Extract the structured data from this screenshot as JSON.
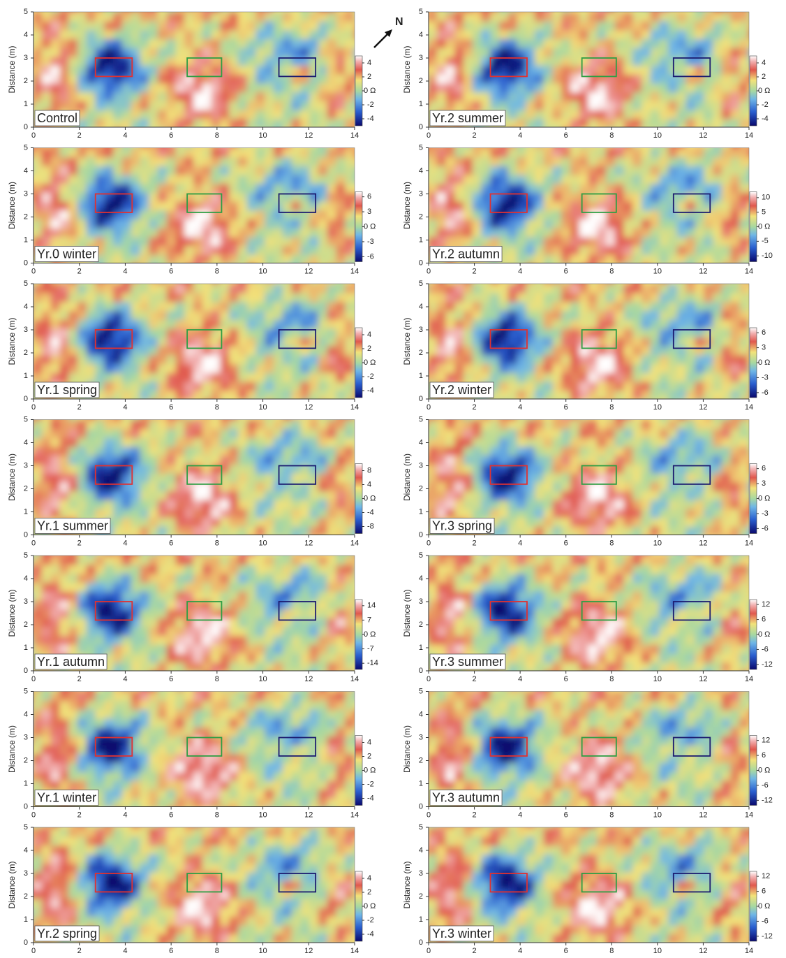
{
  "annotation": "N",
  "chart_data": [
    {
      "type": "heatmap",
      "label": "Control",
      "ylabel": "Distance (m)",
      "xlim": [
        0,
        14
      ],
      "xticks": [
        0,
        2,
        4,
        6,
        8,
        10,
        12,
        14
      ],
      "ylim": [
        0,
        5
      ],
      "yticks": [
        0,
        1,
        2,
        3,
        4,
        5
      ],
      "clim": [
        -5,
        5
      ],
      "cticks": [
        4,
        2,
        {
          "value": 0,
          "label": "0 Ω"
        },
        -2,
        -4
      ],
      "boxes": [
        {
          "color": "#e03131",
          "x": [
            2.7,
            4.3
          ],
          "y": [
            2.2,
            3
          ]
        },
        {
          "color": "#2f9e44",
          "x": [
            6.7,
            8.2
          ],
          "y": [
            2.2,
            3
          ]
        },
        {
          "color": "#1c1c70",
          "x": [
            10.7,
            12.3
          ],
          "y": [
            2.2,
            3
          ]
        }
      ]
    },
    {
      "type": "heatmap",
      "label": "Yr.0 winter",
      "ylabel": "Distance (m)",
      "xlim": [
        0,
        14
      ],
      "xticks": [
        0,
        2,
        4,
        6,
        8,
        10,
        12,
        14
      ],
      "ylim": [
        0,
        5
      ],
      "yticks": [
        0,
        1,
        2,
        3,
        4,
        5
      ],
      "clim": [
        -7,
        7
      ],
      "cticks": [
        6,
        3,
        {
          "value": 0,
          "label": "0 Ω"
        },
        -3,
        -6
      ],
      "boxes": [
        {
          "color": "#e03131",
          "x": [
            2.7,
            4.3
          ],
          "y": [
            2.2,
            3
          ]
        },
        {
          "color": "#2f9e44",
          "x": [
            6.7,
            8.2
          ],
          "y": [
            2.2,
            3
          ]
        },
        {
          "color": "#1c1c70",
          "x": [
            10.7,
            12.3
          ],
          "y": [
            2.2,
            3
          ]
        }
      ]
    },
    {
      "type": "heatmap",
      "label": "Yr.1 spring",
      "ylabel": "Distance (m)",
      "xlim": [
        0,
        14
      ],
      "xticks": [
        0,
        2,
        4,
        6,
        8,
        10,
        12,
        14
      ],
      "ylim": [
        0,
        5
      ],
      "yticks": [
        0,
        1,
        2,
        3,
        4,
        5
      ],
      "clim": [
        -5,
        5
      ],
      "cticks": [
        4,
        2,
        {
          "value": 0,
          "label": "0 Ω"
        },
        -2,
        -4
      ],
      "boxes": [
        {
          "color": "#e03131",
          "x": [
            2.7,
            4.3
          ],
          "y": [
            2.2,
            3
          ]
        },
        {
          "color": "#2f9e44",
          "x": [
            6.7,
            8.2
          ],
          "y": [
            2.2,
            3
          ]
        },
        {
          "color": "#1c1c70",
          "x": [
            10.7,
            12.3
          ],
          "y": [
            2.2,
            3
          ]
        }
      ]
    },
    {
      "type": "heatmap",
      "label": "Yr.1 summer",
      "ylabel": "Distance (m)",
      "xlim": [
        0,
        14
      ],
      "xticks": [
        0,
        2,
        4,
        6,
        8,
        10,
        12,
        14
      ],
      "ylim": [
        0,
        5
      ],
      "yticks": [
        0,
        1,
        2,
        3,
        4,
        5
      ],
      "clim": [
        -10,
        10
      ],
      "cticks": [
        8,
        4,
        {
          "value": 0,
          "label": "0 Ω"
        },
        -4,
        -8
      ],
      "boxes": [
        {
          "color": "#e03131",
          "x": [
            2.7,
            4.3
          ],
          "y": [
            2.2,
            3
          ]
        },
        {
          "color": "#2f9e44",
          "x": [
            6.7,
            8.2
          ],
          "y": [
            2.2,
            3
          ]
        },
        {
          "color": "#1c1c70",
          "x": [
            10.7,
            12.3
          ],
          "y": [
            2.2,
            3
          ]
        }
      ]
    },
    {
      "type": "heatmap",
      "label": "Yr.1 autumn",
      "ylabel": "Distance (m)",
      "xlim": [
        0,
        14
      ],
      "xticks": [
        0,
        2,
        4,
        6,
        8,
        10,
        12,
        14
      ],
      "ylim": [
        0,
        5
      ],
      "yticks": [
        0,
        1,
        2,
        3,
        4,
        5
      ],
      "clim": [
        -17,
        17
      ],
      "cticks": [
        14,
        7,
        {
          "value": 0,
          "label": "0 Ω"
        },
        -7,
        -14
      ],
      "boxes": [
        {
          "color": "#e03131",
          "x": [
            2.7,
            4.3
          ],
          "y": [
            2.2,
            3
          ]
        },
        {
          "color": "#2f9e44",
          "x": [
            6.7,
            8.2
          ],
          "y": [
            2.2,
            3
          ]
        },
        {
          "color": "#1c1c70",
          "x": [
            10.7,
            12.3
          ],
          "y": [
            2.2,
            3
          ]
        }
      ]
    },
    {
      "type": "heatmap",
      "label": "Yr.1 winter",
      "ylabel": "Distance (m)",
      "xlim": [
        0,
        14
      ],
      "xticks": [
        0,
        2,
        4,
        6,
        8,
        10,
        12,
        14
      ],
      "ylim": [
        0,
        5
      ],
      "yticks": [
        0,
        1,
        2,
        3,
        4,
        5
      ],
      "clim": [
        -5,
        5
      ],
      "cticks": [
        4,
        2,
        {
          "value": 0,
          "label": "0 Ω"
        },
        -2,
        -4
      ],
      "boxes": [
        {
          "color": "#e03131",
          "x": [
            2.7,
            4.3
          ],
          "y": [
            2.2,
            3
          ]
        },
        {
          "color": "#2f9e44",
          "x": [
            6.7,
            8.2
          ],
          "y": [
            2.2,
            3
          ]
        },
        {
          "color": "#1c1c70",
          "x": [
            10.7,
            12.3
          ],
          "y": [
            2.2,
            3
          ]
        }
      ]
    },
    {
      "type": "heatmap",
      "label": "Yr.2 spring",
      "ylabel": "Distance (m)",
      "xlim": [
        0,
        14
      ],
      "xticks": [
        0,
        2,
        4,
        6,
        8,
        10,
        12,
        14
      ],
      "ylim": [
        0,
        5
      ],
      "yticks": [
        0,
        1,
        2,
        3,
        4,
        5
      ],
      "clim": [
        -5,
        5
      ],
      "cticks": [
        4,
        2,
        {
          "value": 0,
          "label": "0 Ω"
        },
        -2,
        -4
      ],
      "boxes": [
        {
          "color": "#e03131",
          "x": [
            2.7,
            4.3
          ],
          "y": [
            2.2,
            3
          ]
        },
        {
          "color": "#2f9e44",
          "x": [
            6.7,
            8.2
          ],
          "y": [
            2.2,
            3
          ]
        },
        {
          "color": "#1c1c70",
          "x": [
            10.7,
            12.3
          ],
          "y": [
            2.2,
            3
          ]
        }
      ]
    },
    {
      "type": "heatmap",
      "label": "Yr.2 summer",
      "ylabel": "Distance (m)",
      "xlim": [
        0,
        14
      ],
      "xticks": [
        0,
        2,
        4,
        6,
        8,
        10,
        12,
        14
      ],
      "ylim": [
        0,
        5
      ],
      "yticks": [
        0,
        1,
        2,
        3,
        4,
        5
      ],
      "clim": [
        -5,
        5
      ],
      "cticks": [
        4,
        2,
        {
          "value": 0,
          "label": "0 Ω"
        },
        -2,
        -4
      ],
      "boxes": [
        {
          "color": "#e03131",
          "x": [
            2.7,
            4.3
          ],
          "y": [
            2.2,
            3
          ]
        },
        {
          "color": "#2f9e44",
          "x": [
            6.7,
            8.2
          ],
          "y": [
            2.2,
            3
          ]
        },
        {
          "color": "#1c1c70",
          "x": [
            10.7,
            12.3
          ],
          "y": [
            2.2,
            3
          ]
        }
      ]
    },
    {
      "type": "heatmap",
      "label": "Yr.2 autumn",
      "ylabel": "Distance (m)",
      "xlim": [
        0,
        14
      ],
      "xticks": [
        0,
        2,
        4,
        6,
        8,
        10,
        12,
        14
      ],
      "ylim": [
        0,
        5
      ],
      "yticks": [
        0,
        1,
        2,
        3,
        4,
        5
      ],
      "clim": [
        -12,
        12
      ],
      "cticks": [
        10,
        5,
        {
          "value": 0,
          "label": "0 Ω"
        },
        -5,
        -10
      ],
      "boxes": [
        {
          "color": "#e03131",
          "x": [
            2.7,
            4.3
          ],
          "y": [
            2.2,
            3
          ]
        },
        {
          "color": "#2f9e44",
          "x": [
            6.7,
            8.2
          ],
          "y": [
            2.2,
            3
          ]
        },
        {
          "color": "#1c1c70",
          "x": [
            10.7,
            12.3
          ],
          "y": [
            2.2,
            3
          ]
        }
      ]
    },
    {
      "type": "heatmap",
      "label": "Yr.2 winter",
      "ylabel": "Distance (m)",
      "xlim": [
        0,
        14
      ],
      "xticks": [
        0,
        2,
        4,
        6,
        8,
        10,
        12,
        14
      ],
      "ylim": [
        0,
        5
      ],
      "yticks": [
        0,
        1,
        2,
        3,
        4,
        5
      ],
      "clim": [
        -7,
        7
      ],
      "cticks": [
        6,
        3,
        {
          "value": 0,
          "label": "0 Ω"
        },
        -3,
        -6
      ],
      "boxes": [
        {
          "color": "#e03131",
          "x": [
            2.7,
            4.3
          ],
          "y": [
            2.2,
            3
          ]
        },
        {
          "color": "#2f9e44",
          "x": [
            6.7,
            8.2
          ],
          "y": [
            2.2,
            3
          ]
        },
        {
          "color": "#1c1c70",
          "x": [
            10.7,
            12.3
          ],
          "y": [
            2.2,
            3
          ]
        }
      ]
    },
    {
      "type": "heatmap",
      "label": "Yr.3 spring",
      "ylabel": "Distance (m)",
      "xlim": [
        0,
        14
      ],
      "xticks": [
        0,
        2,
        4,
        6,
        8,
        10,
        12,
        14
      ],
      "ylim": [
        0,
        5
      ],
      "yticks": [
        0,
        1,
        2,
        3,
        4,
        5
      ],
      "clim": [
        -7,
        7
      ],
      "cticks": [
        6,
        3,
        {
          "value": 0,
          "label": "0 Ω"
        },
        -3,
        -6
      ],
      "boxes": [
        {
          "color": "#e03131",
          "x": [
            2.7,
            4.3
          ],
          "y": [
            2.2,
            3
          ]
        },
        {
          "color": "#2f9e44",
          "x": [
            6.7,
            8.2
          ],
          "y": [
            2.2,
            3
          ]
        },
        {
          "color": "#1c1c70",
          "x": [
            10.7,
            12.3
          ],
          "y": [
            2.2,
            3
          ]
        }
      ]
    },
    {
      "type": "heatmap",
      "label": "Yr.3 summer",
      "ylabel": "Distance (m)",
      "xlim": [
        0,
        14
      ],
      "xticks": [
        0,
        2,
        4,
        6,
        8,
        10,
        12,
        14
      ],
      "ylim": [
        0,
        5
      ],
      "yticks": [
        0,
        1,
        2,
        3,
        4,
        5
      ],
      "clim": [
        -14,
        14
      ],
      "cticks": [
        12,
        6,
        {
          "value": 0,
          "label": "0 Ω"
        },
        -6,
        -12
      ],
      "boxes": [
        {
          "color": "#e03131",
          "x": [
            2.7,
            4.3
          ],
          "y": [
            2.2,
            3
          ]
        },
        {
          "color": "#2f9e44",
          "x": [
            6.7,
            8.2
          ],
          "y": [
            2.2,
            3
          ]
        },
        {
          "color": "#1c1c70",
          "x": [
            10.7,
            12.3
          ],
          "y": [
            2.2,
            3
          ]
        }
      ]
    },
    {
      "type": "heatmap",
      "label": "Yr.3 autumn",
      "ylabel": "Distance (m)",
      "xlim": [
        0,
        14
      ],
      "xticks": [
        0,
        2,
        4,
        6,
        8,
        10,
        12,
        14
      ],
      "ylim": [
        0,
        5
      ],
      "yticks": [
        0,
        1,
        2,
        3,
        4,
        5
      ],
      "clim": [
        -14,
        14
      ],
      "cticks": [
        12,
        6,
        {
          "value": 0,
          "label": "0 Ω"
        },
        -6,
        -12
      ],
      "boxes": [
        {
          "color": "#e03131",
          "x": [
            2.7,
            4.3
          ],
          "y": [
            2.2,
            3
          ]
        },
        {
          "color": "#2f9e44",
          "x": [
            6.7,
            8.2
          ],
          "y": [
            2.2,
            3
          ]
        },
        {
          "color": "#1c1c70",
          "x": [
            10.7,
            12.3
          ],
          "y": [
            2.2,
            3
          ]
        }
      ]
    },
    {
      "type": "heatmap",
      "label": "Yr.3 winter",
      "ylabel": "Distance (m)",
      "xlim": [
        0,
        14
      ],
      "xticks": [
        0,
        2,
        4,
        6,
        8,
        10,
        12,
        14
      ],
      "ylim": [
        0,
        5
      ],
      "yticks": [
        0,
        1,
        2,
        3,
        4,
        5
      ],
      "clim": [
        -14,
        14
      ],
      "cticks": [
        12,
        6,
        {
          "value": 0,
          "label": "0 Ω"
        },
        -6,
        -12
      ],
      "boxes": [
        {
          "color": "#e03131",
          "x": [
            2.7,
            4.3
          ],
          "y": [
            2.2,
            3
          ]
        },
        {
          "color": "#2f9e44",
          "x": [
            6.7,
            8.2
          ],
          "y": [
            2.2,
            3
          ]
        },
        {
          "color": "#1c1c70",
          "x": [
            10.7,
            12.3
          ],
          "y": [
            2.2,
            3
          ]
        }
      ]
    }
  ]
}
